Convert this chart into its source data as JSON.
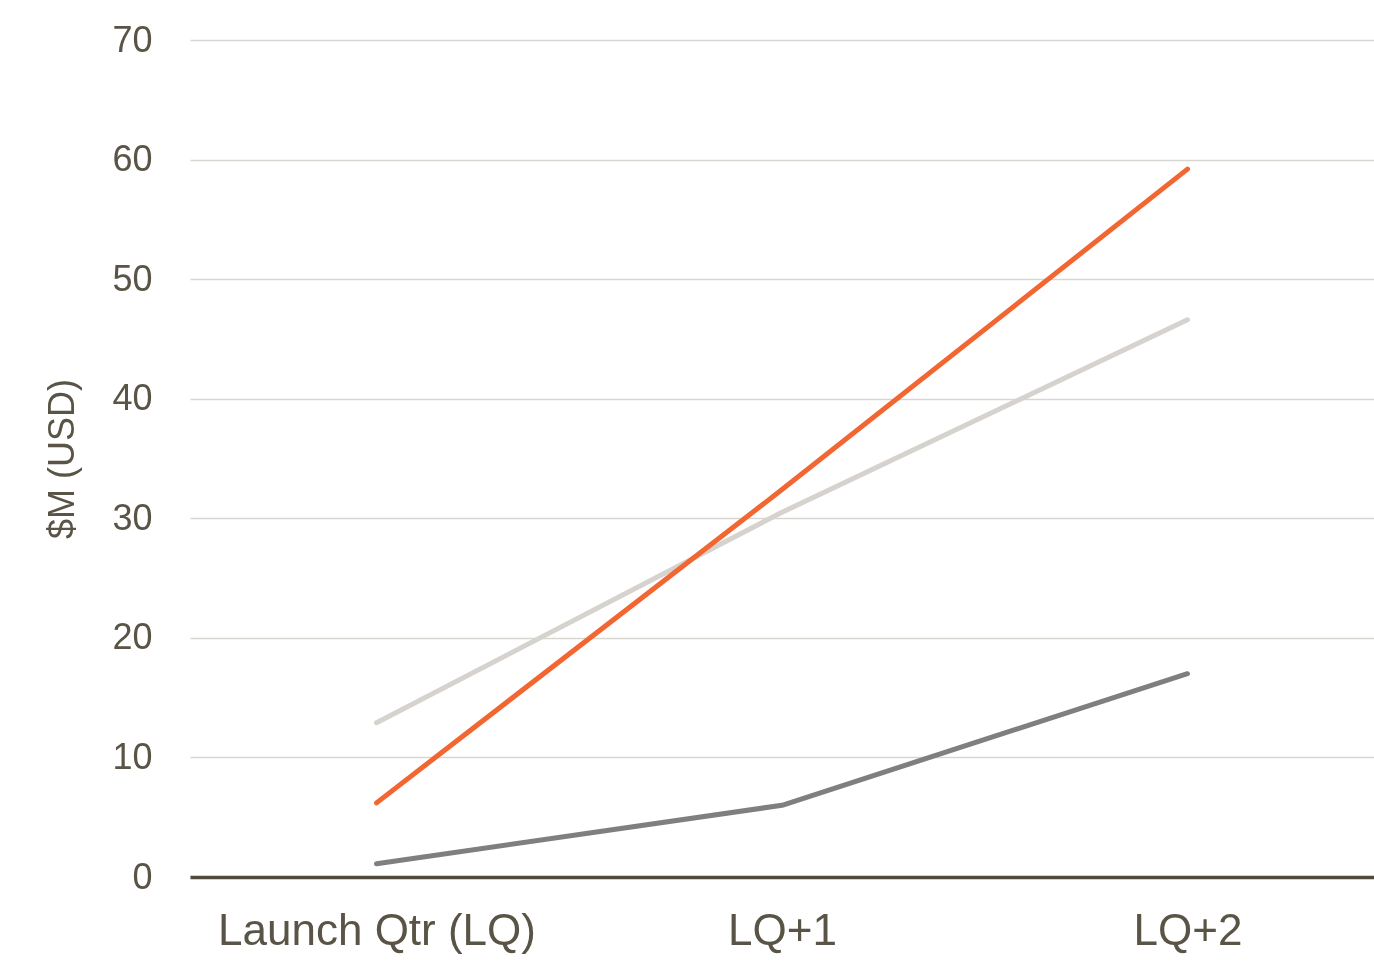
{
  "chart_data": {
    "type": "line",
    "ylabel": "$M (USD)",
    "categories": [
      "Launch Qtr (LQ)",
      "LQ+1",
      "LQ+2"
    ],
    "series": [
      {
        "color": "#d6d2ce",
        "values": [
          12.9,
          30.5,
          46.6
        ]
      },
      {
        "color": "#7f7f7f",
        "values": [
          1.1,
          6.0,
          17.0
        ]
      },
      {
        "color": "#f26632",
        "values": [
          6.2,
          32.4,
          59.2
        ]
      }
    ],
    "ylim": [
      0,
      70
    ],
    "yticks": [
      0,
      10,
      20,
      30,
      40,
      50,
      60,
      70
    ],
    "grid": "y",
    "line_style": "solid"
  }
}
